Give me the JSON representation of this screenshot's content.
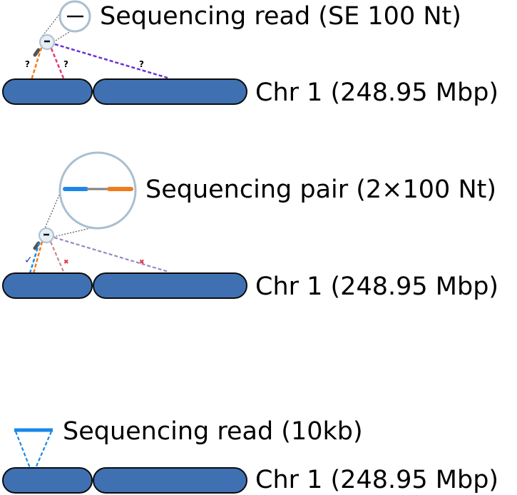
{
  "colors": {
    "chromosome_fill": "#3f71b2",
    "chromosome_stroke": "#0c0c0c",
    "lens_stroke": "#a9bfd0",
    "orange": "#f07b1a",
    "blue": "#1a88e8",
    "pink": "#e7396d",
    "purple": "#6c2fd6",
    "muted_pink": "#c9888f",
    "muted_purple": "#9a86c2",
    "red_mark": "#e0303c",
    "check_mark": "#2338b8"
  },
  "panels": [
    {
      "read_label": "Sequencing read (SE 100 Nt)",
      "chromosome_label": "Chr 1 (248.95 Mbp)",
      "marks": [
        "?",
        "?",
        "?"
      ]
    },
    {
      "read_label": "Sequencing pair (2×100 Nt)",
      "chromosome_label": "Chr 1 (248.95 Mbp)",
      "marks": [
        "✓",
        "✖",
        "✖"
      ]
    },
    {
      "read_label": "Sequencing read (10kb)",
      "chromosome_label": "Chr 1 (248.95 Mbp)"
    }
  ]
}
